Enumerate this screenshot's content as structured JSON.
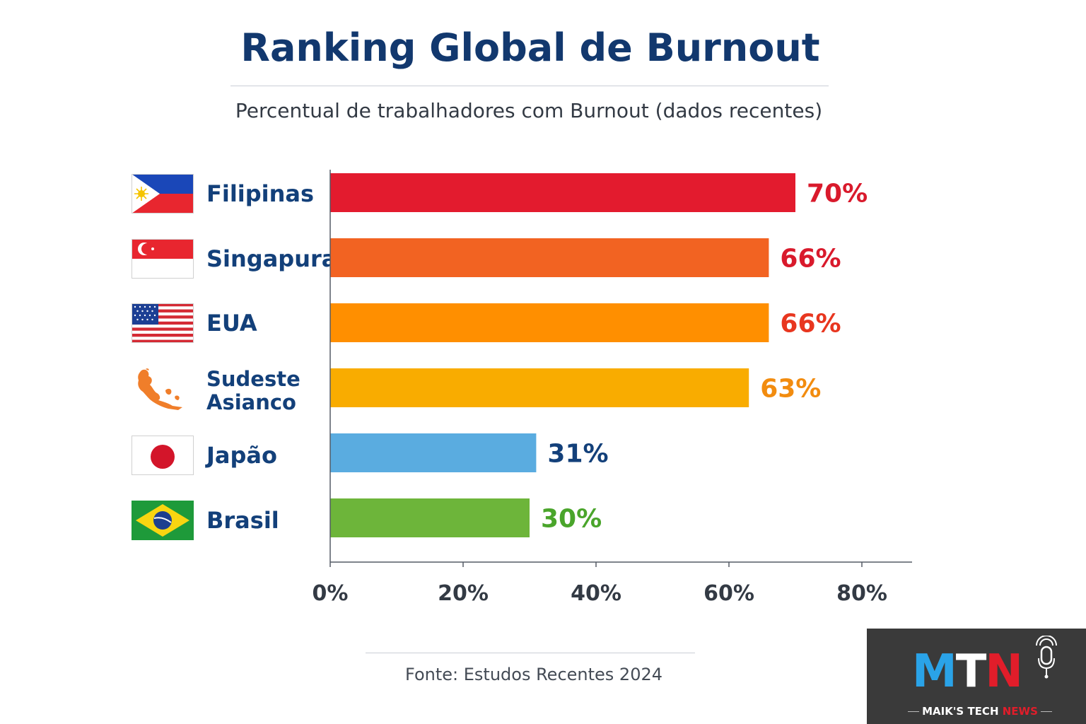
{
  "title": "Ranking Global de Burnout",
  "subtitle": "Percentual de trabalhadores com Burnout (dados recentes)",
  "source": "Fonte: Estudos Recentes 2024",
  "chart_data": {
    "type": "bar",
    "orientation": "horizontal",
    "categories": [
      "Filipinas",
      "Singapura",
      "EUA",
      "Sudeste Asianco",
      "Japão",
      "Brasil"
    ],
    "values": [
      70,
      66,
      66,
      63,
      31,
      30
    ],
    "value_labels": [
      "70%",
      "66%",
      "66%",
      "63%",
      "31%",
      "30%"
    ],
    "bar_colors": [
      "#e31b2e",
      "#f26322",
      "#ff8f00",
      "#f9ac00",
      "#5aace0",
      "#6db53a"
    ],
    "label_colors": [
      "#d91a2c",
      "#d91a2c",
      "#e8361f",
      "#f28c0f",
      "#13407a",
      "#4aa52b"
    ],
    "xlim": [
      0,
      80
    ],
    "x_ticks": [
      0,
      20,
      40,
      60,
      80
    ],
    "x_tick_labels": [
      "0%",
      "20%",
      "40%",
      "60%",
      "80%"
    ],
    "grid": false,
    "legend": "none"
  },
  "rows": [
    {
      "label": "Filipinas",
      "icon": "philippines-flag-icon"
    },
    {
      "label": "Singapura",
      "icon": "singapore-flag-icon"
    },
    {
      "label": "EUA",
      "icon": "usa-flag-icon"
    },
    {
      "label_line1": "Sudeste",
      "label_line2": "Asianco",
      "icon": "southeast-asia-map-icon"
    },
    {
      "label": "Japão",
      "icon": "japan-flag-icon"
    },
    {
      "label": "Brasil",
      "icon": "brazil-flag-icon"
    }
  ],
  "logo": {
    "letters": [
      "M",
      "T",
      "N"
    ],
    "tagline_main": "MAIK'S TECH",
    "tagline_accent": "NEWS",
    "icon": "microphone-icon"
  }
}
